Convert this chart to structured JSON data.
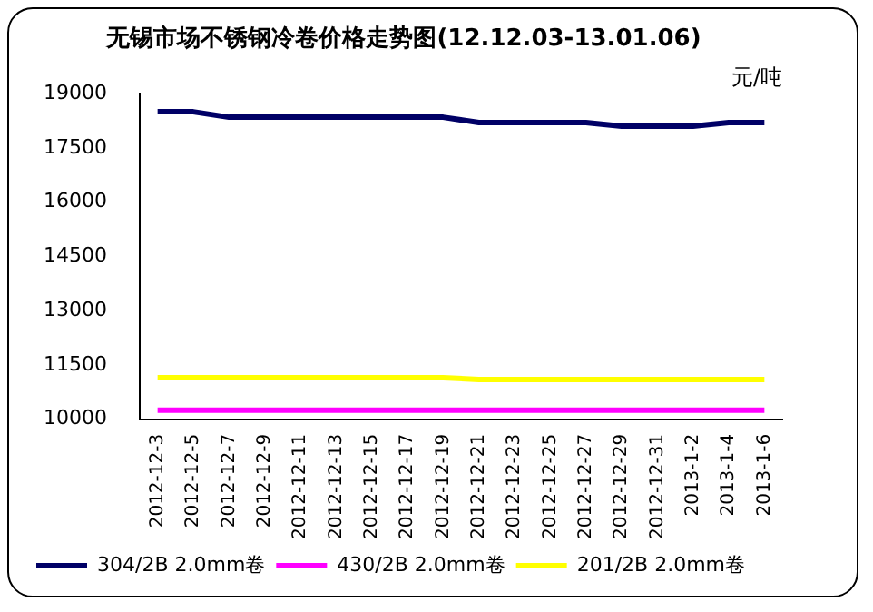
{
  "chart_data": {
    "type": "line",
    "title": "无锡市场不锈钢冷卷价格走势图(12.12.03-13.01.06)",
    "ylabel": "元/吨",
    "categories": [
      "2012-12-3",
      "2012-12-5",
      "2012-12-7",
      "2012-12-9",
      "2012-12-11",
      "2012-12-13",
      "2012-12-15",
      "2012-12-17",
      "2012-12-19",
      "2012-12-21",
      "2012-12-23",
      "2012-12-25",
      "2012-12-27",
      "2012-12-29",
      "2012-12-31",
      "2013-1-2",
      "2013-1-4",
      "2013-1-6"
    ],
    "series": [
      {
        "name": "304/2B 2.0mm卷",
        "color": "#000066",
        "values": [
          18500,
          18500,
          18350,
          18350,
          18350,
          18350,
          18350,
          18350,
          18350,
          18200,
          18200,
          18200,
          18200,
          18100,
          18100,
          18100,
          18200,
          18200
        ]
      },
      {
        "name": "430/2B 2.0mm卷",
        "color": "#ff00ff",
        "values": [
          10250,
          10250,
          10250,
          10250,
          10250,
          10250,
          10250,
          10250,
          10250,
          10250,
          10250,
          10250,
          10250,
          10250,
          10250,
          10250,
          10250,
          10250
        ]
      },
      {
        "name": "201/2B 2.0mm卷",
        "color": "#ffff00",
        "values": [
          11150,
          11150,
          11150,
          11150,
          11150,
          11150,
          11150,
          11150,
          11150,
          11100,
          11100,
          11100,
          11100,
          11100,
          11100,
          11100,
          11100,
          11100
        ]
      }
    ],
    "ylim": [
      10000,
      19000
    ],
    "yticks": [
      10000,
      11500,
      13000,
      14500,
      16000,
      17500,
      19000
    ],
    "grid": false,
    "legend": "bottom",
    "marker": "none",
    "line_style": "solid"
  }
}
